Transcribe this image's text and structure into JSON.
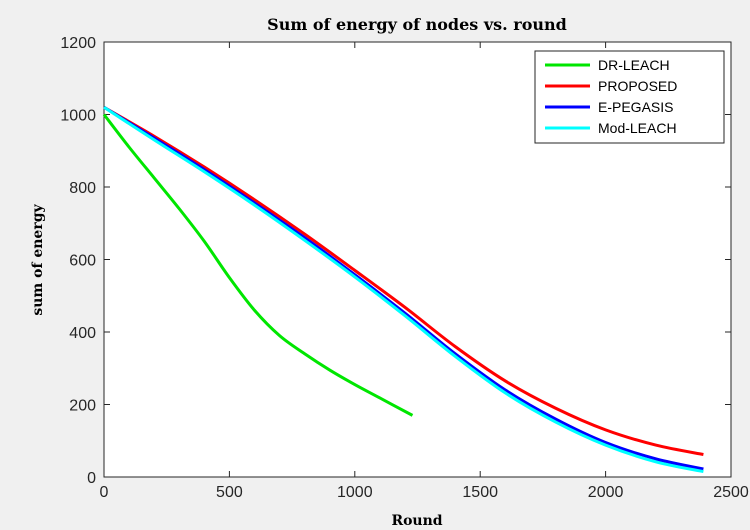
{
  "chart_data": {
    "type": "line",
    "title": "Sum of energy of nodes vs. round",
    "xlabel": "Round",
    "ylabel": "sum of energy",
    "xlim": [
      0,
      2500
    ],
    "ylim": [
      0,
      1200
    ],
    "xticks": [
      0,
      500,
      1000,
      1500,
      2000,
      2500
    ],
    "yticks": [
      0,
      200,
      400,
      600,
      800,
      1000,
      1200
    ],
    "grid": false,
    "legend_position": "top-right",
    "series": [
      {
        "name": "DR-LEACH",
        "color": "#00e600",
        "x": [
          0,
          100,
          200,
          300,
          400,
          500,
          600,
          700,
          800,
          900,
          1000,
          1100,
          1230
        ],
        "y": [
          1000,
          910,
          825,
          740,
          650,
          550,
          460,
          390,
          340,
          295,
          255,
          218,
          170
        ]
      },
      {
        "name": "PROPOSED",
        "color": "#ff0000",
        "x": [
          0,
          200,
          400,
          600,
          800,
          1000,
          1200,
          1400,
          1600,
          1800,
          2000,
          2200,
          2390
        ],
        "y": [
          1020,
          940,
          855,
          765,
          670,
          570,
          468,
          360,
          265,
          190,
          130,
          88,
          62
        ]
      },
      {
        "name": "E-PEGASIS",
        "color": "#0000ff",
        "x": [
          0,
          200,
          400,
          600,
          800,
          1000,
          1200,
          1400,
          1600,
          1800,
          2000,
          2200,
          2390
        ],
        "y": [
          1020,
          935,
          848,
          756,
          660,
          558,
          452,
          340,
          240,
          160,
          95,
          50,
          22
        ]
      },
      {
        "name": "Mod-LEACH",
        "color": "#00ffff",
        "x": [
          0,
          200,
          400,
          600,
          800,
          1000,
          1200,
          1400,
          1600,
          1800,
          2000,
          2200,
          2390
        ],
        "y": [
          1020,
          930,
          842,
          750,
          653,
          552,
          445,
          333,
          232,
          152,
          88,
          42,
          15
        ]
      }
    ]
  }
}
